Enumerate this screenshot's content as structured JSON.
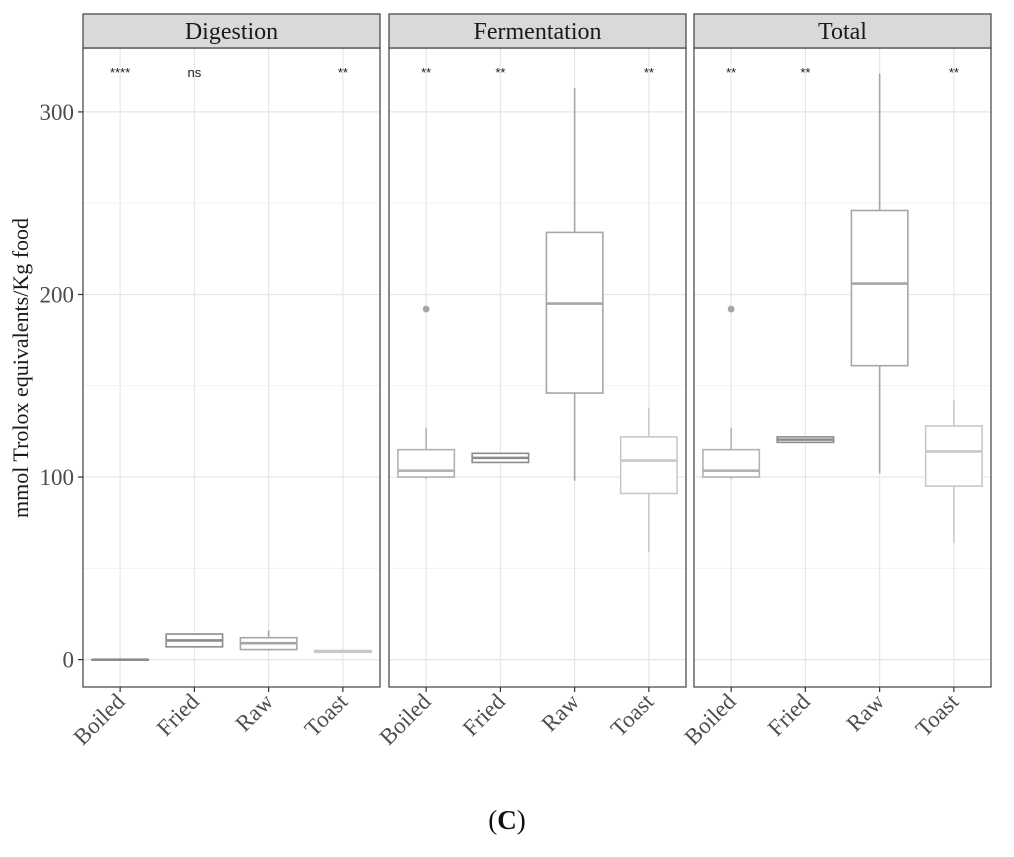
{
  "chart_data": {
    "type": "boxplot",
    "ylabel": "mmol Trolox equivalents/Kg food",
    "ylim": [
      -15,
      335
    ],
    "yticks": [
      0,
      100,
      200,
      300
    ],
    "categories": [
      "Boiled",
      "Fried",
      "Raw",
      "Toast"
    ],
    "panels": [
      {
        "title": "Digestion",
        "significance": [
          "****",
          "ns",
          "",
          "**"
        ],
        "boxes": [
          {
            "category": "Boiled",
            "color": "#8c8c8c",
            "min": 0,
            "q1": 0,
            "median": 0,
            "q3": 0,
            "max": 0,
            "outliers": []
          },
          {
            "category": "Fried",
            "color": "#8c8c8c",
            "min": 7,
            "q1": 7,
            "median": 10.5,
            "q3": 14,
            "max": 14,
            "outliers": []
          },
          {
            "category": "Raw",
            "color": "#a6a6a6",
            "min": 5,
            "q1": 5.5,
            "median": 9,
            "q3": 12,
            "max": 16,
            "outliers": []
          },
          {
            "category": "Toast",
            "color": "#c8c8c8",
            "min": 4,
            "q1": 4,
            "median": 4.5,
            "q3": 5,
            "max": 5,
            "outliers": []
          }
        ]
      },
      {
        "title": "Fermentation",
        "significance": [
          "**",
          "**",
          "",
          "**"
        ],
        "boxes": [
          {
            "category": "Boiled",
            "color": "#b3b3b3",
            "min": 99,
            "q1": 100,
            "median": 103.5,
            "q3": 115,
            "max": 127,
            "outliers": [
              192
            ]
          },
          {
            "category": "Fried",
            "color": "#8c8c8c",
            "min": 108,
            "q1": 108,
            "median": 110.5,
            "q3": 113,
            "max": 113,
            "outliers": []
          },
          {
            "category": "Raw",
            "color": "#a6a6a6",
            "min": 98,
            "q1": 146,
            "median": 195,
            "q3": 234,
            "max": 313,
            "outliers": []
          },
          {
            "category": "Toast",
            "color": "#c8c8c8",
            "min": 59,
            "q1": 91,
            "median": 109,
            "q3": 122,
            "max": 138,
            "outliers": []
          }
        ]
      },
      {
        "title": "Total",
        "significance": [
          "**",
          "**",
          "",
          "**"
        ],
        "boxes": [
          {
            "category": "Boiled",
            "color": "#b3b3b3",
            "min": 99,
            "q1": 100,
            "median": 103.5,
            "q3": 115,
            "max": 127,
            "outliers": [
              192
            ]
          },
          {
            "category": "Fried",
            "color": "#8c8c8c",
            "min": 119,
            "q1": 119,
            "median": 120.5,
            "q3": 122,
            "max": 122,
            "outliers": []
          },
          {
            "category": "Raw",
            "color": "#a6a6a6",
            "min": 102,
            "q1": 161,
            "median": 206,
            "q3": 246,
            "max": 321,
            "outliers": []
          },
          {
            "category": "Toast",
            "color": "#c8c8c8",
            "min": 64,
            "q1": 95,
            "median": 114,
            "q3": 128,
            "max": 142,
            "outliers": []
          }
        ]
      }
    ]
  },
  "caption": {
    "open": "(",
    "letter": "C",
    "close": ")"
  }
}
